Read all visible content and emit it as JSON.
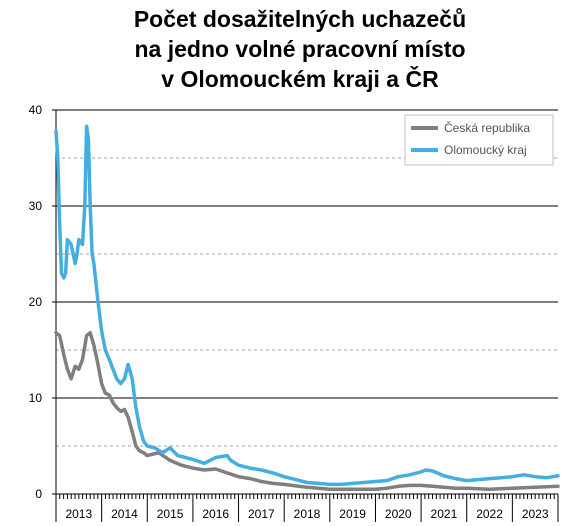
{
  "chart_data": {
    "type": "line",
    "title": [
      "Počet dosažitelných uchazečů",
      "na jedno volné pracovní místo",
      "v Olomouckém kraji a ČR"
    ],
    "xlabel": "",
    "ylabel": "",
    "ylim": [
      0,
      40
    ],
    "xlim": [
      2013.0,
      2024.0
    ],
    "yticks": [
      0,
      10,
      20,
      30,
      40
    ],
    "xtick_labels": [
      "2013",
      "2014",
      "2015",
      "2016",
      "2017",
      "2018",
      "2019",
      "2020",
      "2021",
      "2022",
      "2023"
    ],
    "grid": "horizontal major and minor (dashed)",
    "legend_position": "top-right",
    "series": [
      {
        "name": "Česká republika",
        "color": "#7f7f7f",
        "x": [
          2013.0,
          2013.08,
          2013.17,
          2013.25,
          2013.33,
          2013.42,
          2013.5,
          2013.58,
          2013.67,
          2013.75,
          2013.83,
          2013.92,
          2014.0,
          2014.08,
          2014.17,
          2014.25,
          2014.33,
          2014.42,
          2014.5,
          2014.58,
          2014.67,
          2014.75,
          2014.83,
          2014.92,
          2015.0,
          2015.25,
          2015.5,
          2015.75,
          2016.0,
          2016.25,
          2016.5,
          2016.75,
          2017.0,
          2017.25,
          2017.5,
          2017.75,
          2018.0,
          2018.5,
          2019.0,
          2019.5,
          2020.0,
          2020.25,
          2020.5,
          2020.75,
          2021.0,
          2021.25,
          2021.5,
          2021.75,
          2022.0,
          2022.5,
          2023.0,
          2023.5,
          2024.0
        ],
        "y": [
          16.8,
          16.5,
          14.5,
          13.0,
          12.0,
          13.3,
          13.0,
          14.0,
          16.5,
          16.8,
          15.5,
          13.5,
          11.5,
          10.5,
          10.3,
          9.5,
          9.0,
          8.6,
          8.8,
          8.0,
          6.5,
          5.0,
          4.5,
          4.3,
          4.0,
          4.3,
          3.5,
          3.0,
          2.7,
          2.5,
          2.6,
          2.2,
          1.8,
          1.6,
          1.3,
          1.1,
          1.0,
          0.7,
          0.5,
          0.5,
          0.5,
          0.6,
          0.8,
          0.9,
          0.9,
          0.8,
          0.7,
          0.6,
          0.6,
          0.5,
          0.6,
          0.7,
          0.8
        ]
      },
      {
        "name": "Olomoucký kraj",
        "color": "#44aee0",
        "x": [
          2013.0,
          2013.04,
          2013.08,
          2013.12,
          2013.17,
          2013.21,
          2013.25,
          2013.33,
          2013.42,
          2013.46,
          2013.5,
          2013.58,
          2013.63,
          2013.67,
          2013.71,
          2013.75,
          2013.79,
          2013.83,
          2013.92,
          2014.0,
          2014.08,
          2014.17,
          2014.25,
          2014.33,
          2014.42,
          2014.5,
          2014.58,
          2014.67,
          2014.75,
          2014.83,
          2014.92,
          2015.0,
          2015.17,
          2015.33,
          2015.5,
          2015.67,
          2015.83,
          2016.0,
          2016.25,
          2016.5,
          2016.75,
          2016.83,
          2017.0,
          2017.25,
          2017.5,
          2017.75,
          2018.0,
          2018.25,
          2018.5,
          2018.75,
          2019.0,
          2019.25,
          2019.5,
          2019.75,
          2020.0,
          2020.25,
          2020.5,
          2020.75,
          2021.0,
          2021.1,
          2021.25,
          2021.5,
          2021.75,
          2022.0,
          2022.25,
          2022.5,
          2022.75,
          2023.0,
          2023.25,
          2023.5,
          2023.75,
          2024.0
        ],
        "y": [
          37.8,
          35.0,
          28.0,
          23.0,
          22.5,
          23.0,
          26.5,
          26.0,
          24.0,
          25.0,
          26.5,
          26.0,
          30.0,
          38.3,
          37.0,
          30.0,
          25.0,
          24.0,
          20.0,
          17.0,
          15.0,
          14.0,
          13.0,
          12.0,
          11.5,
          12.0,
          13.5,
          12.0,
          9.0,
          7.0,
          5.5,
          5.0,
          4.8,
          4.3,
          4.8,
          4.0,
          3.8,
          3.6,
          3.2,
          3.8,
          4.0,
          3.5,
          3.0,
          2.7,
          2.5,
          2.2,
          1.8,
          1.5,
          1.2,
          1.1,
          1.0,
          1.0,
          1.1,
          1.2,
          1.3,
          1.4,
          1.8,
          2.0,
          2.3,
          2.5,
          2.4,
          1.9,
          1.6,
          1.4,
          1.5,
          1.6,
          1.7,
          1.8,
          2.0,
          1.8,
          1.7,
          1.9
        ]
      }
    ]
  }
}
